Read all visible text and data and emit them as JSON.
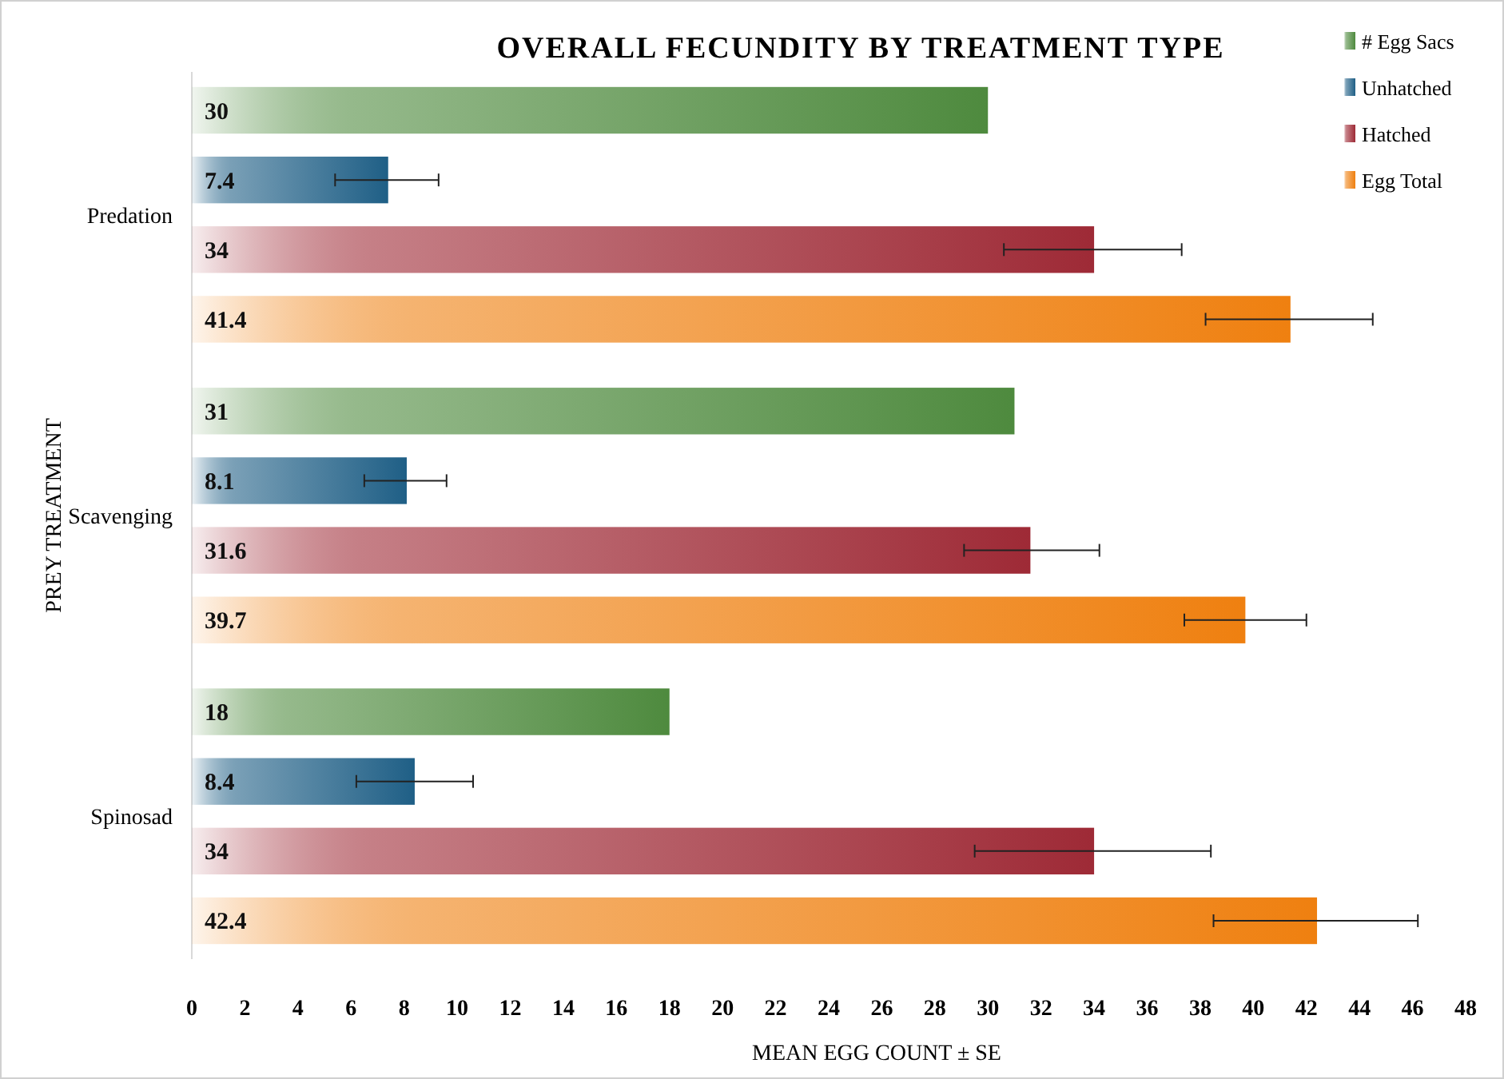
{
  "chart_data": {
    "type": "bar",
    "orientation": "horizontal",
    "title": "OVERALL FECUNDITY BY TREATMENT TYPE",
    "xlabel": "MEAN EGG COUNT ± SE",
    "ylabel": "PREY TREATMENT",
    "categories": [
      "Predation",
      "Scavenging",
      "Spinosad"
    ],
    "series": [
      {
        "name": "# Egg Sacs",
        "color": "#4e8a3e",
        "values": [
          30,
          31,
          18
        ]
      },
      {
        "name": "Unhatched",
        "color": "#1f5f86",
        "values": [
          7.4,
          8.1,
          8.4
        ],
        "errors": [
          [
            5.4,
            9.3
          ],
          [
            6.5,
            9.6
          ],
          [
            6.2,
            10.6
          ]
        ]
      },
      {
        "name": "Hatched",
        "color": "#9e2a36",
        "values": [
          34,
          31.6,
          34
        ],
        "errors": [
          [
            30.6,
            37.3
          ],
          [
            29.1,
            34.2
          ],
          [
            29.5,
            38.4
          ]
        ]
      },
      {
        "name": "Egg Total",
        "color": "#ef8010",
        "values": [
          41.4,
          39.7,
          42.4
        ],
        "errors": [
          [
            38.2,
            44.5
          ],
          [
            37.4,
            42.0
          ],
          [
            38.5,
            46.2
          ]
        ]
      }
    ],
    "xlim": [
      0,
      48
    ],
    "xticks": [
      0,
      2,
      4,
      6,
      8,
      10,
      12,
      14,
      16,
      18,
      20,
      22,
      24,
      26,
      28,
      30,
      32,
      34,
      36,
      38,
      40,
      42,
      44,
      46,
      48
    ],
    "data_labels": true,
    "legend": "top right",
    "grid": false
  }
}
